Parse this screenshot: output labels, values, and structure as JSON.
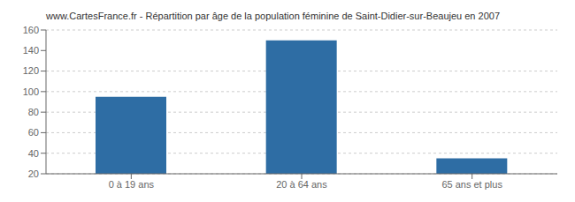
{
  "chart_data": {
    "type": "bar",
    "title": "www.CartesFrance.fr - Répartition par âge de la population féminine de Saint-Didier-sur-Beaujeu en 2007",
    "categories": [
      "0 à 19 ans",
      "20 à 64 ans",
      "65 ans et plus"
    ],
    "values": [
      95,
      150,
      35
    ],
    "color": "#2e6da4",
    "ylim": [
      20,
      160
    ],
    "yticks": [
      20,
      40,
      60,
      80,
      100,
      120,
      140,
      160
    ],
    "grid": true
  }
}
